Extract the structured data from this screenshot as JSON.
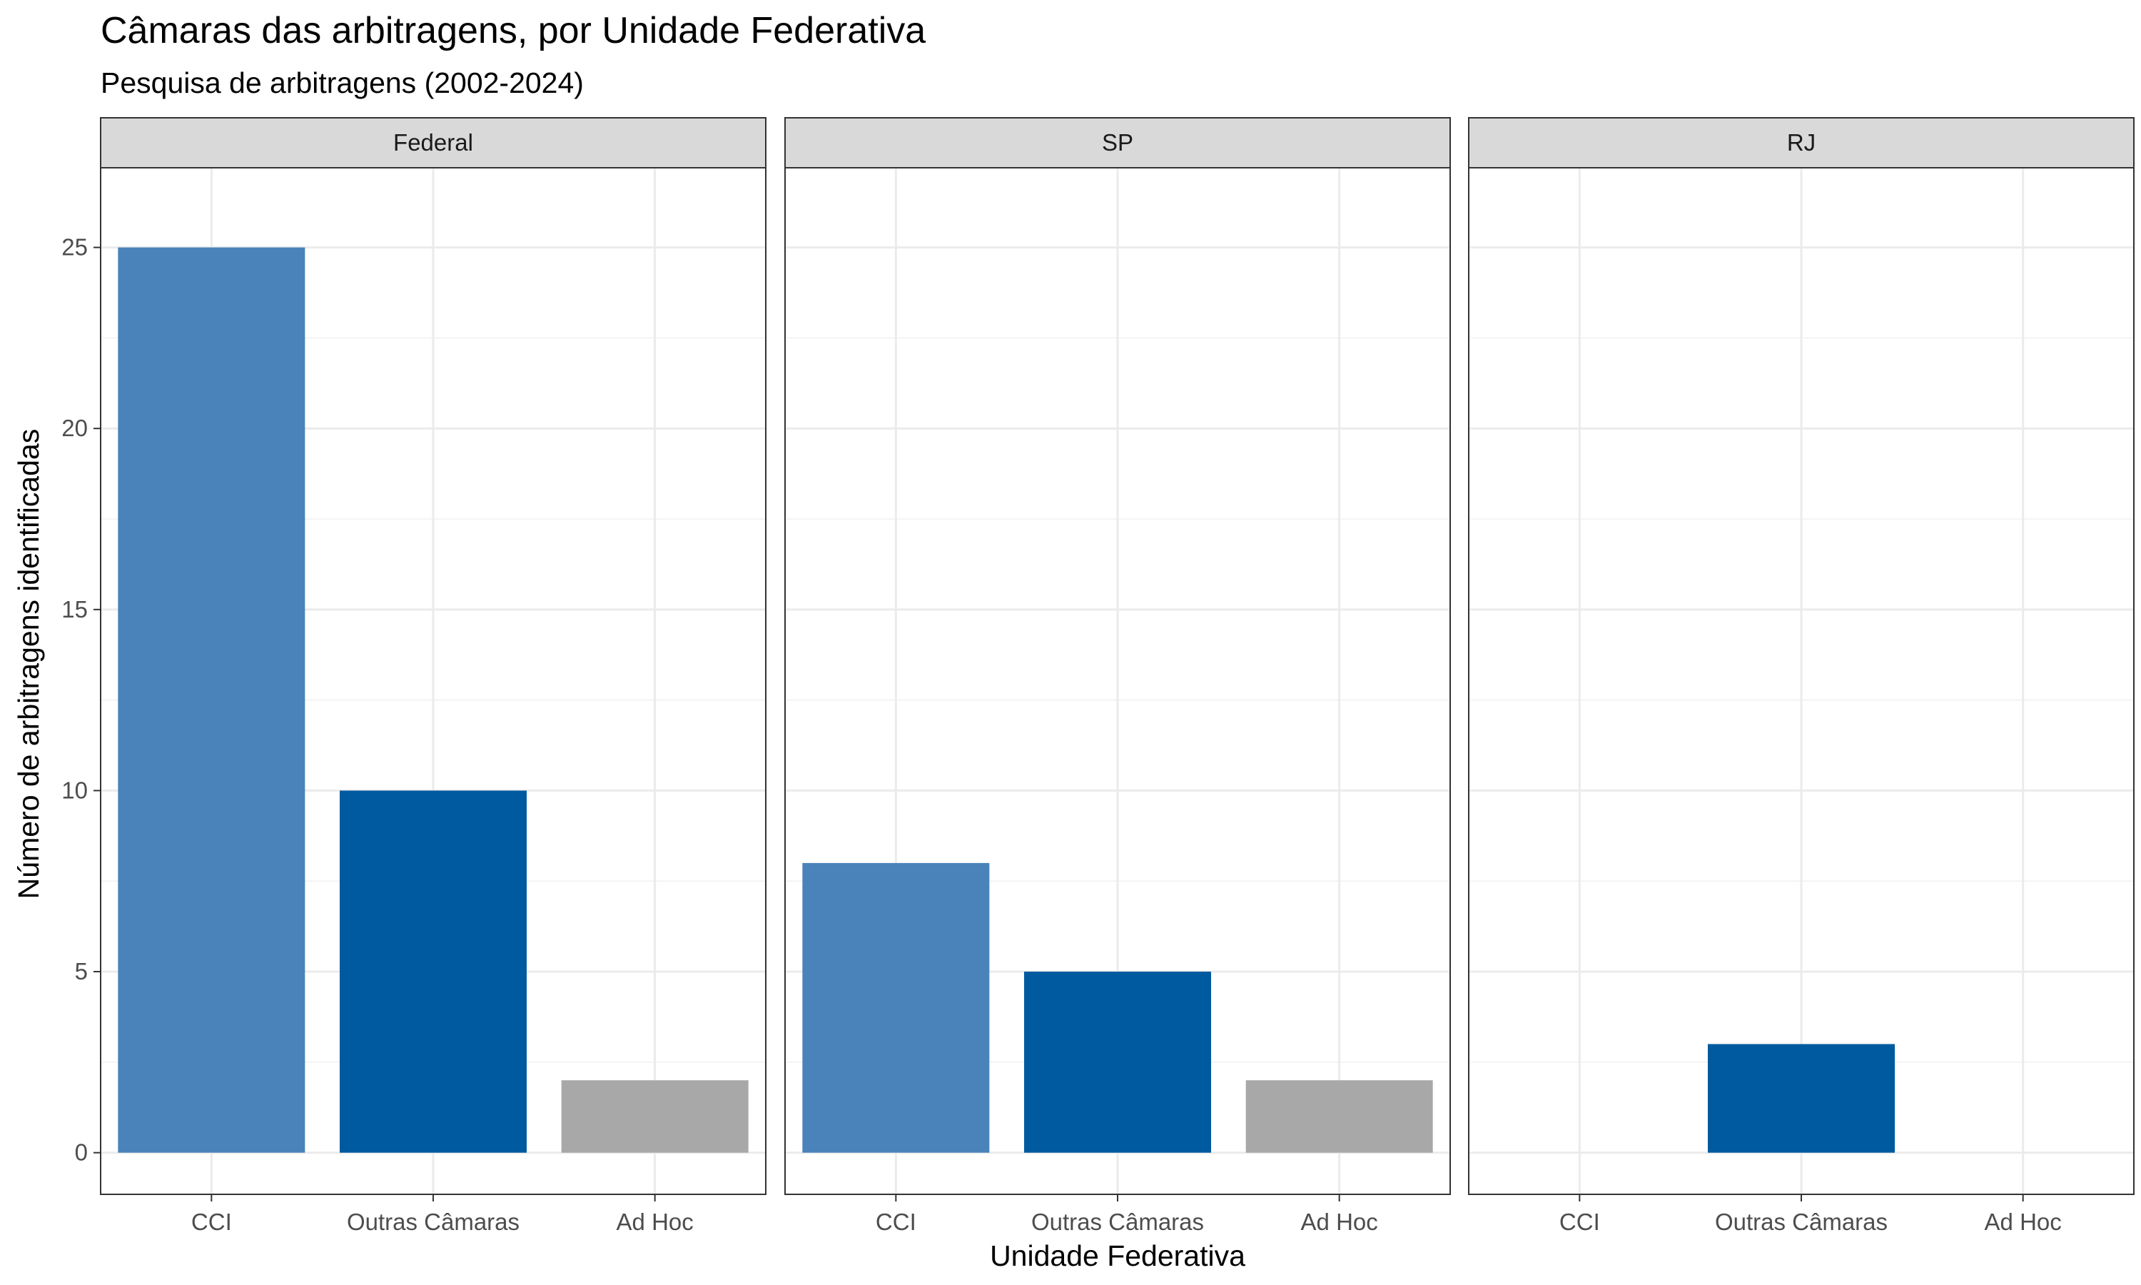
{
  "chart_data": {
    "type": "bar",
    "title": "Câmaras das arbitragens, por Unidade Federativa",
    "subtitle": "Pesquisa de arbitragens (2002-2024)",
    "xlabel": "Unidade Federativa",
    "ylabel": "Número de arbitragens identificadas",
    "categories": [
      "CCI",
      "Outras Câmaras",
      "Ad Hoc"
    ],
    "ylim": [
      -1.15,
      27.2
    ],
    "yticks": [
      0,
      5,
      10,
      15,
      20,
      25
    ],
    "grid": true,
    "legend": "none",
    "colors": {
      "CCI": "#4a83b9",
      "Outras Câmaras": "#005a9f",
      "Ad Hoc": "#a8a8a8"
    },
    "facets": [
      {
        "name": "Federal",
        "values": [
          25,
          10,
          2
        ]
      },
      {
        "name": "SP",
        "values": [
          8,
          5,
          2
        ]
      },
      {
        "name": "RJ",
        "values": [
          0,
          3,
          0
        ]
      }
    ]
  }
}
